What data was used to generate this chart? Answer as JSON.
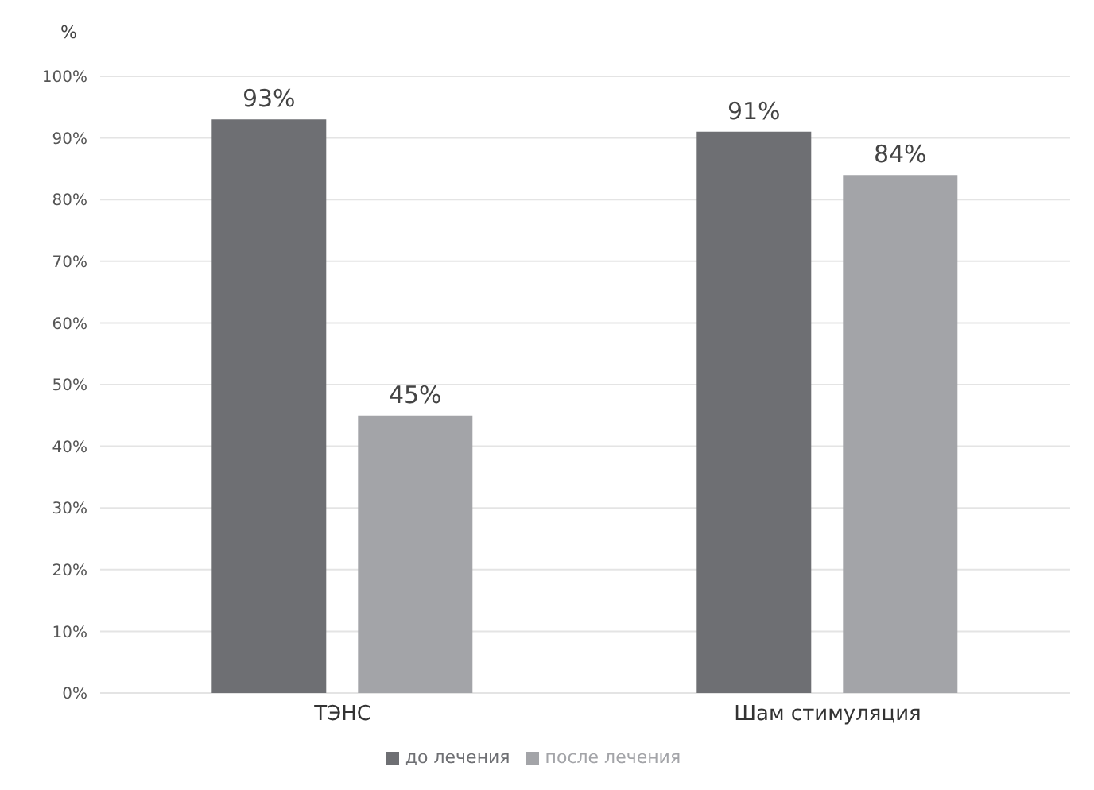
{
  "chart_data": {
    "type": "bar",
    "ylabel": "%",
    "categories": [
      "ТЭНС",
      "Шам стимуляция"
    ],
    "series": [
      {
        "name": "до лечения",
        "color": "#6e6f73",
        "values": [
          93,
          91
        ],
        "value_labels": [
          "93%",
          "91%"
        ]
      },
      {
        "name": "после лечения",
        "color": "#a3a4a8",
        "values": [
          45,
          84
        ],
        "value_labels": [
          "45%",
          "84%"
        ]
      }
    ],
    "ylim": [
      0,
      100
    ],
    "yticks": [
      {
        "value": 0,
        "label": "0%"
      },
      {
        "value": 10,
        "label": "10%"
      },
      {
        "value": 20,
        "label": "20%"
      },
      {
        "value": 30,
        "label": "30%"
      },
      {
        "value": 40,
        "label": "40%"
      },
      {
        "value": 50,
        "label": "50%"
      },
      {
        "value": 60,
        "label": "60%"
      },
      {
        "value": 70,
        "label": "70%"
      },
      {
        "value": 80,
        "label": "80%"
      },
      {
        "value": 90,
        "label": "90%"
      },
      {
        "value": 100,
        "label": "100%"
      }
    ],
    "grid": "y",
    "legend": "bottom"
  }
}
